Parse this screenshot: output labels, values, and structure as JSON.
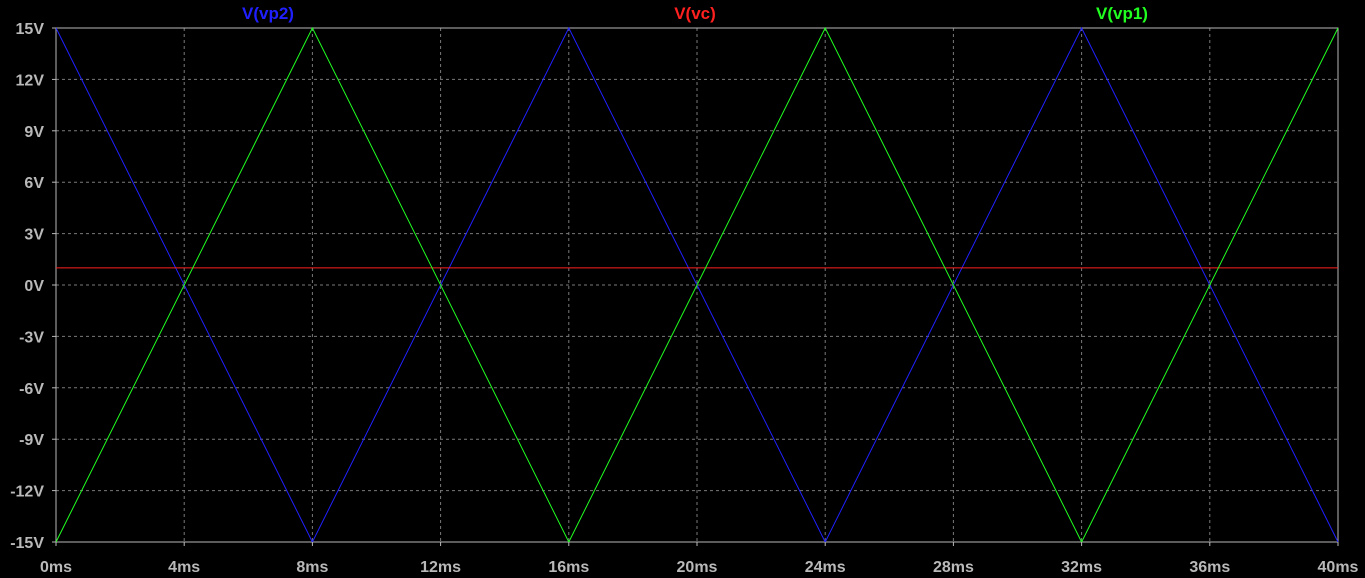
{
  "chart_data": {
    "type": "line",
    "title": "",
    "xlabel": "",
    "ylabel": "",
    "xlim": [
      0,
      40
    ],
    "ylim": [
      -15,
      15
    ],
    "x_unit": "ms",
    "y_unit": "V",
    "grid": true,
    "legend_placement": "top",
    "x_ticks": [
      "0ms",
      "4ms",
      "8ms",
      "12ms",
      "16ms",
      "20ms",
      "24ms",
      "28ms",
      "32ms",
      "36ms",
      "40ms"
    ],
    "y_ticks": [
      "15V",
      "12V",
      "9V",
      "6V",
      "3V",
      "0V",
      "-3V",
      "-6V",
      "-9V",
      "-12V",
      "-15V"
    ],
    "series": [
      {
        "name": "V(vp2)",
        "color": "#2020ff",
        "x": [
          0,
          8,
          16,
          24,
          32,
          40
        ],
        "y": [
          15,
          -15,
          15,
          -15,
          15,
          -15
        ]
      },
      {
        "name": "V(vc)",
        "color": "#ff2020",
        "x": [
          0,
          40
        ],
        "y": [
          1,
          1
        ]
      },
      {
        "name": "V(vp1)",
        "color": "#20ff20",
        "x": [
          0,
          8,
          16,
          24,
          32,
          40
        ],
        "y": [
          -15,
          15,
          -15,
          15,
          -15,
          15
        ]
      }
    ]
  }
}
